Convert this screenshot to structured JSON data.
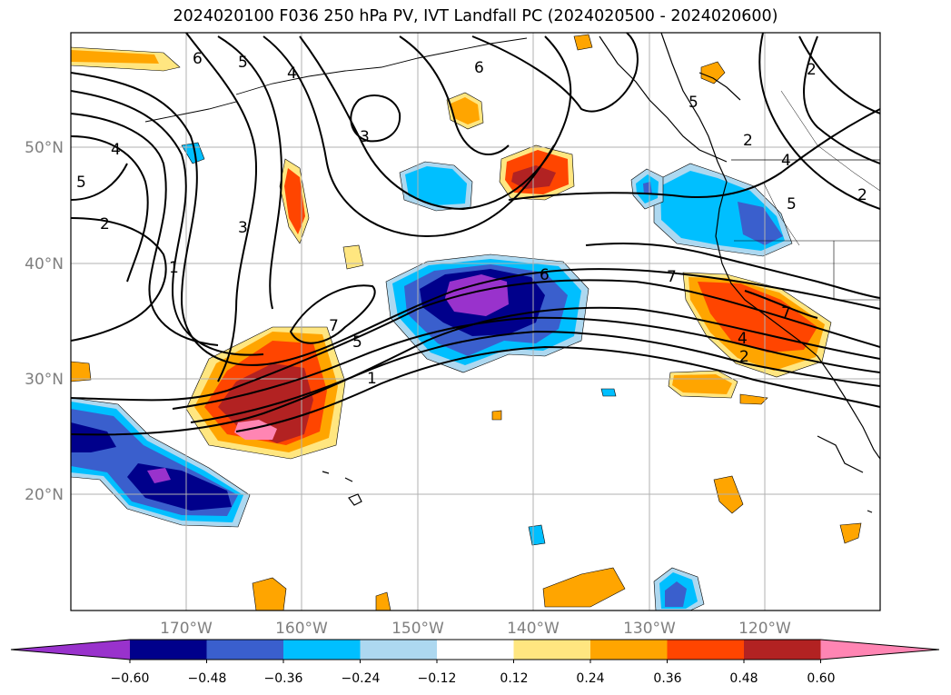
{
  "title": "2024020100 F036 250 hPa PV, IVT Landfall PC (2024020500 - 2024020600)",
  "lat_labels": [
    "50°N",
    "40°N",
    "30°N",
    "20°N"
  ],
  "lon_labels": [
    "170°W",
    "160°W",
    "150°W",
    "140°W",
    "130°W",
    "120°W"
  ],
  "colorbar": {
    "tick_labels": [
      "−0.60",
      "−0.48",
      "−0.36",
      "−0.24",
      "−0.12",
      "0.12",
      "0.24",
      "0.36",
      "0.48",
      "0.60"
    ],
    "colors": [
      "#9932cc",
      "#00008b",
      "#3a5fcd",
      "#00bfff",
      "#add8f0",
      "#ffffff",
      "#ffe680",
      "#ffa500",
      "#ff4500",
      "#b22222",
      "#ff85b3"
    ]
  },
  "contour_labels": {
    "c6a": "6",
    "c5a": "5",
    "c4a": "4",
    "c6b": "6",
    "c3a": "3",
    "c4b": "4",
    "c5b": "5",
    "c2a": "2",
    "c3b": "3",
    "c1a": "1",
    "c5c": "5",
    "c2b": "2",
    "c4c": "4",
    "c5d": "5",
    "c2c": "2",
    "c7a": "7",
    "c5e": "5",
    "c1b": "1",
    "c6c": "6",
    "c7b": "7",
    "c7c": "7",
    "c4d": "4",
    "c2d": "2",
    "c2e": "2"
  }
}
